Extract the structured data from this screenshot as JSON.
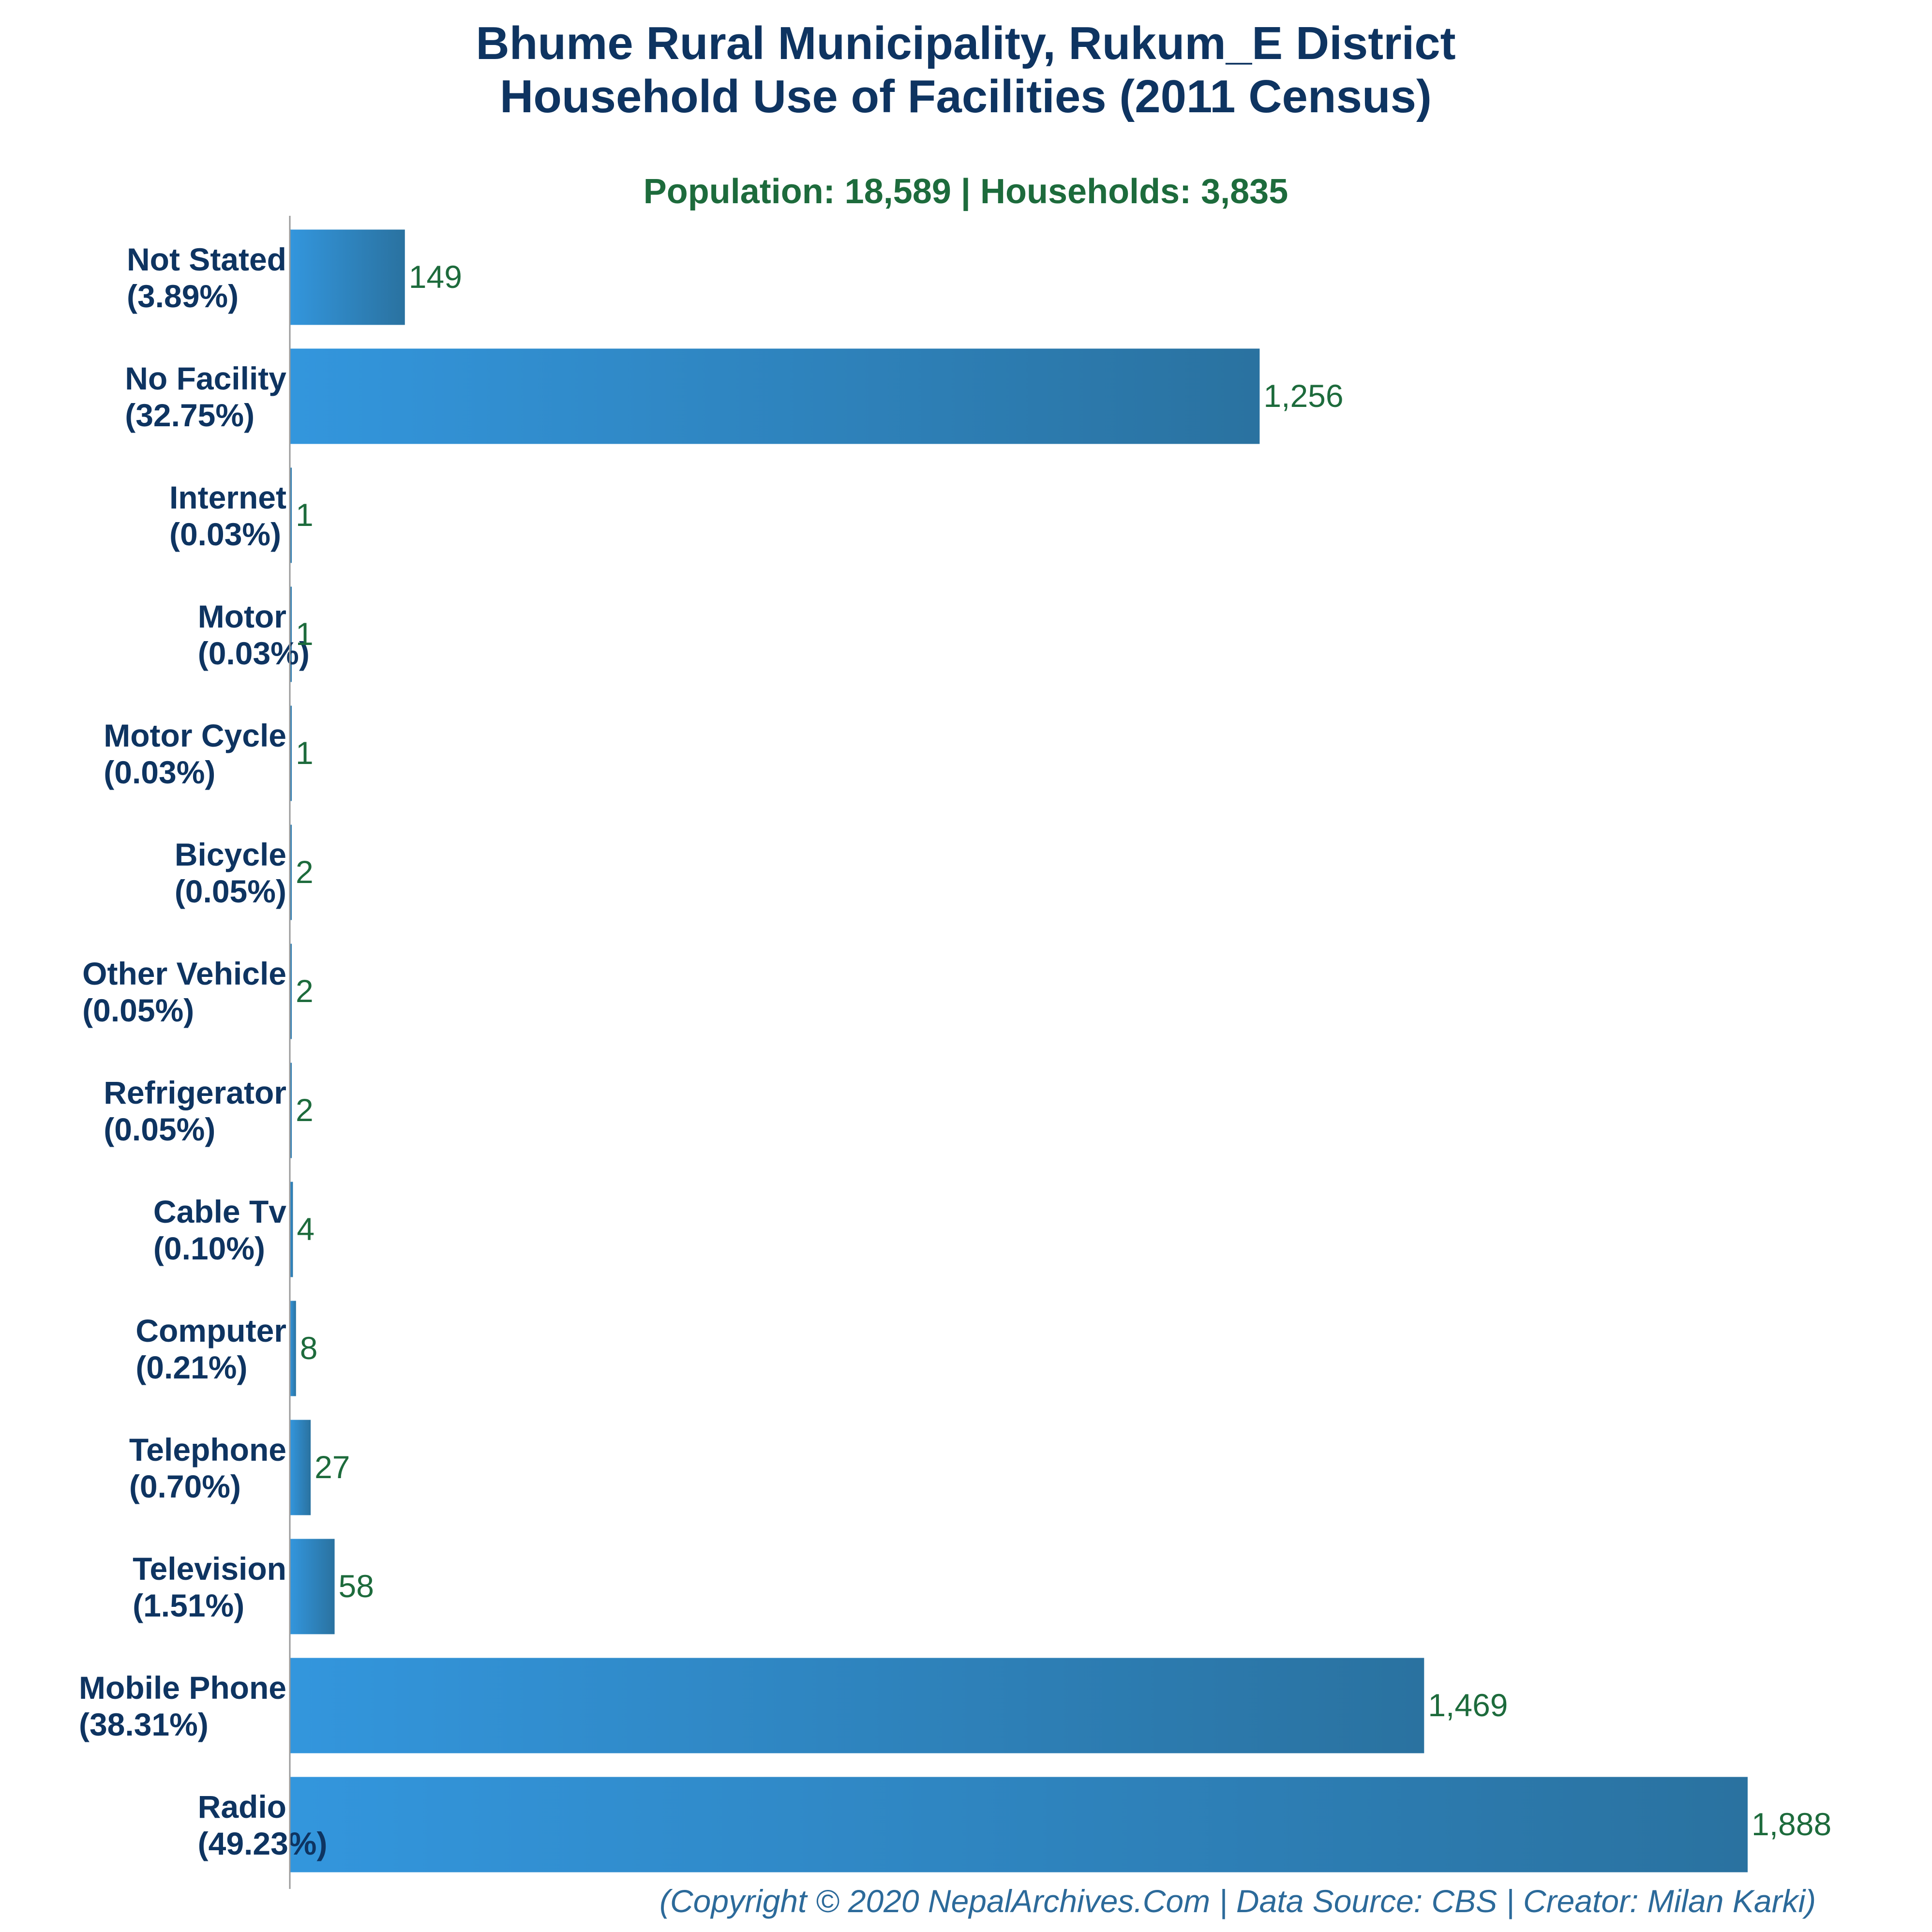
{
  "title_line1": "Bhume Rural Municipality, Rukum_E District",
  "title_line2": "Household Use of Facilities (2011 Census)",
  "subtitle": "Population: 18,589 | Households: 3,835",
  "footer": "(Copyright © 2020 NepalArchives.Com | Data Source: CBS | Creator: Milan Karki)",
  "colors": {
    "bar_start": "#3396dd",
    "bar_end": "#2a72a0",
    "title": "#0e3461",
    "subtitle": "#1d6b3c",
    "value_label": "#1d6b3c",
    "footer": "#2c6a9a"
  },
  "chart_data": {
    "type": "bar",
    "orientation": "horizontal",
    "categories": [
      {
        "name": "Not Stated",
        "pct": "(3.89%)"
      },
      {
        "name": "No Facility",
        "pct": "(32.75%)"
      },
      {
        "name": "Internet",
        "pct": "(0.03%)"
      },
      {
        "name": "Motor",
        "pct": "(0.03%)"
      },
      {
        "name": "Motor Cycle",
        "pct": "(0.03%)"
      },
      {
        "name": "Bicycle",
        "pct": "(0.05%)"
      },
      {
        "name": "Other Vehicle",
        "pct": "(0.05%)"
      },
      {
        "name": "Refrigerator",
        "pct": "(0.05%)"
      },
      {
        "name": "Cable Tv",
        "pct": "(0.10%)"
      },
      {
        "name": "Computer",
        "pct": "(0.21%)"
      },
      {
        "name": "Telephone",
        "pct": "(0.70%)"
      },
      {
        "name": "Television",
        "pct": "(1.51%)"
      },
      {
        "name": "Mobile Phone",
        "pct": "(38.31%)"
      },
      {
        "name": "Radio",
        "pct": "(49.23%)"
      }
    ],
    "values": [
      149,
      1256,
      1,
      1,
      1,
      2,
      2,
      2,
      4,
      8,
      27,
      58,
      1469,
      1888
    ],
    "value_labels": [
      "149",
      "1,256",
      "1",
      "1",
      "1",
      "2",
      "2",
      "2",
      "4",
      "8",
      "27",
      "58",
      "1,469",
      "1,888"
    ],
    "xlim": [
      0,
      1888
    ],
    "grid": false,
    "legend": "none"
  }
}
